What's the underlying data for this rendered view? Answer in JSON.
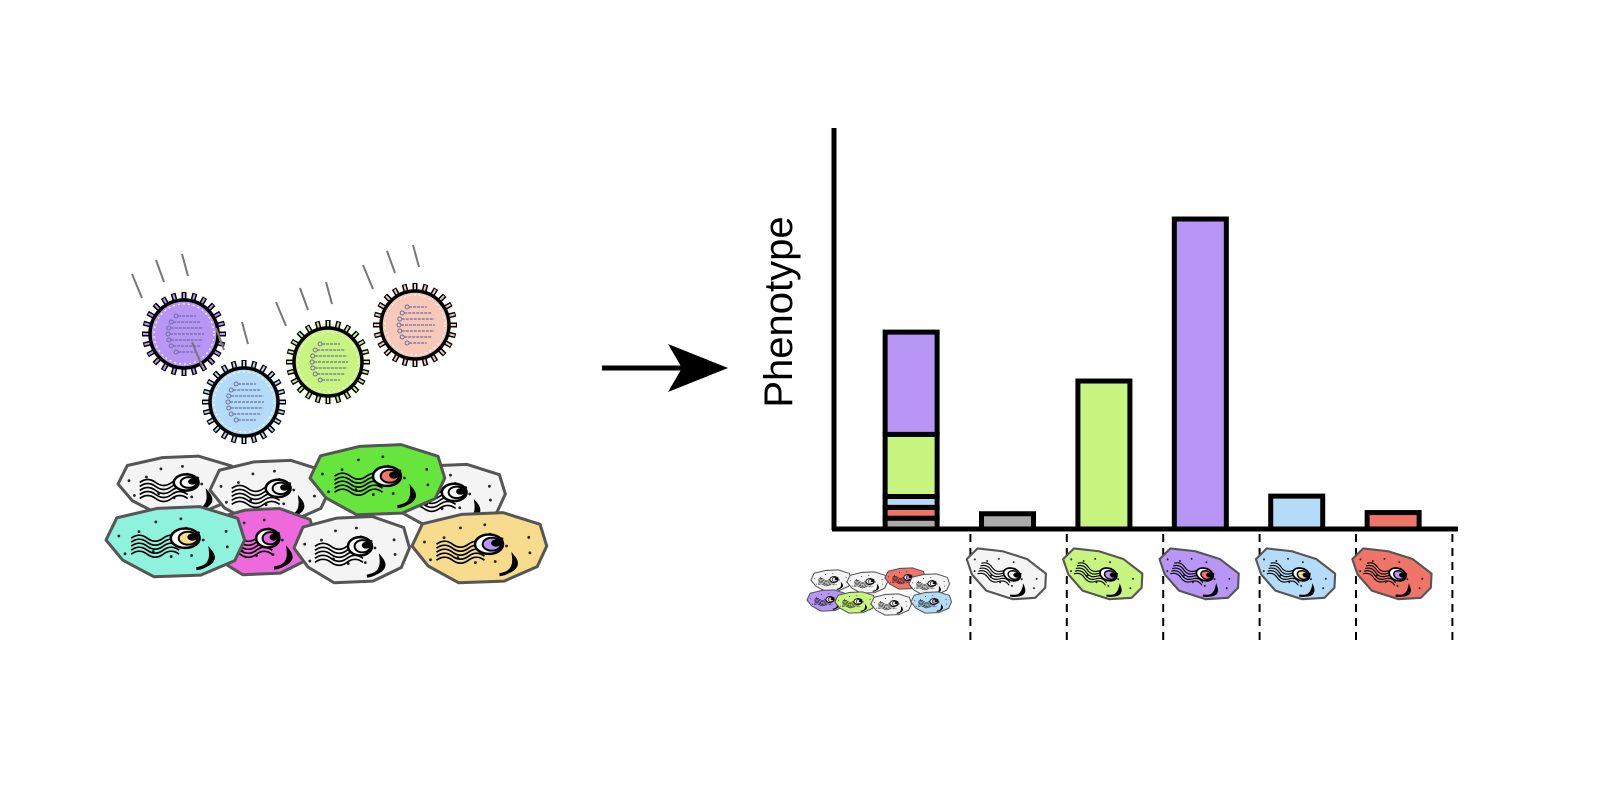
{
  "colors": {
    "purple": "#B896F5",
    "green": "#C8F57F",
    "blue": "#B4DCF8",
    "red": "#F07468",
    "gray": "#ABABAB",
    "salmon": "#F8C8B8",
    "cell_bright_green": "#66E63C",
    "cell_cyan": "#8EF2DC",
    "cell_magenta": "#EE6ADC",
    "cell_yellow": "#F8DC8E",
    "cell_white": "#F4F4F4"
  },
  "viruses": [
    {
      "color": "purple",
      "icon": "virus-icon"
    },
    {
      "color": "blue",
      "icon": "virus-icon"
    },
    {
      "color": "green",
      "icon": "virus-icon"
    },
    {
      "color": "salmon",
      "icon": "virus-icon"
    }
  ],
  "arrow": {
    "icon": "arrow-right-icon"
  },
  "chart_data": {
    "type": "bar",
    "ylabel": "Phenotype",
    "grid": false,
    "ylim": [
      0,
      100
    ],
    "categories": [
      "pooled",
      "gray",
      "green",
      "purple",
      "blue",
      "red"
    ],
    "bars": [
      {
        "category": "pooled",
        "stacked": true,
        "segments": [
          {
            "color": "gray",
            "value": 2.7
          },
          {
            "color": "red",
            "value": 2.7
          },
          {
            "color": "blue",
            "value": 2.7
          },
          {
            "color": "green",
            "value": 15.5
          },
          {
            "color": "purple",
            "value": 25.5
          }
        ]
      },
      {
        "category": "gray",
        "color": "gray",
        "value": 3.8
      },
      {
        "category": "green",
        "color": "green",
        "value": 36.9
      },
      {
        "category": "purple",
        "color": "purple",
        "value": 77.3
      },
      {
        "category": "blue",
        "color": "blue",
        "value": 8.2
      },
      {
        "category": "red",
        "color": "red",
        "value": 4.1
      }
    ],
    "category_icons": [
      {
        "category": "pooled",
        "icon": "cell-population-icon"
      },
      {
        "category": "gray",
        "icon": "cell-icon",
        "body": "cell_white",
        "nucleus": "cell_white"
      },
      {
        "category": "green",
        "icon": "cell-icon",
        "body": "green",
        "nucleus": "purple"
      },
      {
        "category": "purple",
        "icon": "cell-icon",
        "body": "purple",
        "nucleus": "red"
      },
      {
        "category": "blue",
        "icon": "cell-icon",
        "body": "blue",
        "nucleus": "cell_yellow"
      },
      {
        "category": "red",
        "icon": "cell-icon",
        "body": "red",
        "nucleus": "purple"
      }
    ]
  }
}
